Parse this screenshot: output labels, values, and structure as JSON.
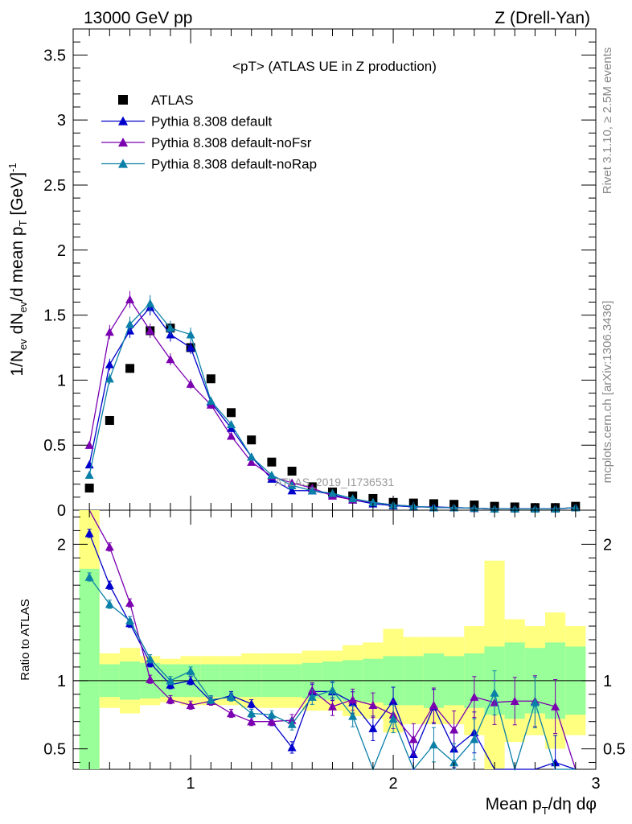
{
  "header": {
    "left": "13000 GeV pp",
    "right": "Z (Drell-Yan)"
  },
  "side_labels": {
    "rivet": "Rivet 3.1.10, ≥ 2.5M events",
    "mcplots": "mcplots.cern.ch [arXiv:1306.3436]"
  },
  "watermark": "ATLAS_2019_I1736531",
  "colors": {
    "atlas": "#000000",
    "default": "#0000cc",
    "noFsr": "#7a00b0",
    "noRap": "#0a7fa8",
    "band_yellow": "#ffff80",
    "band_green": "#99ff99"
  },
  "chart_data": [
    {
      "type": "line",
      "title": "<pT> (ATLAS UE in Z production)",
      "xlabel": "",
      "ylabel": "1/N_ev dN_ev/d mean p_T [GeV]^-1",
      "ylim": [
        0,
        3.7
      ],
      "xlim": [
        0.42,
        3.0
      ],
      "yticks": [
        "0",
        "0.5",
        "1",
        "1.5",
        "2",
        "2.5",
        "3",
        "3.5"
      ],
      "legend_position": "top-left",
      "x": [
        0.5,
        0.6,
        0.7,
        0.8,
        0.9,
        1.0,
        1.1,
        1.2,
        1.3,
        1.4,
        1.5,
        1.6,
        1.7,
        1.8,
        1.9,
        2.0,
        2.1,
        2.2,
        2.3,
        2.4,
        2.5,
        2.6,
        2.7,
        2.8,
        2.9
      ],
      "series": [
        {
          "name": "ATLAS",
          "marker": "square",
          "values": [
            0.17,
            0.69,
            1.09,
            1.38,
            1.4,
            1.25,
            1.01,
            0.75,
            0.54,
            0.37,
            0.3,
            0.18,
            0.14,
            0.11,
            0.09,
            0.06,
            0.055,
            0.05,
            0.045,
            0.04,
            0.03,
            0.025,
            0.02,
            0.02,
            0.03
          ]
        },
        {
          "name": "Pythia 8.308 default",
          "marker": "triangle",
          "values": [
            0.35,
            1.12,
            1.38,
            1.56,
            1.35,
            1.25,
            0.83,
            0.63,
            0.41,
            0.24,
            0.15,
            0.15,
            0.12,
            0.08,
            0.05,
            0.035,
            0.025,
            0.025,
            0.02,
            0.015,
            0.01,
            0.01,
            0.01,
            0.01,
            0.02
          ]
        },
        {
          "name": "Pythia 8.308 default-noFsr",
          "marker": "triangle",
          "values": [
            0.5,
            1.37,
            1.62,
            1.38,
            1.16,
            0.97,
            0.81,
            0.57,
            0.37,
            0.26,
            0.21,
            0.17,
            0.11,
            0.08,
            0.06,
            0.04,
            0.03,
            0.02,
            0.02,
            0.015,
            0.01,
            0.01,
            0.01,
            0.01,
            0.02
          ]
        },
        {
          "name": "Pythia 8.308 default-noRap",
          "marker": "triangle",
          "values": [
            0.27,
            1.01,
            1.43,
            1.59,
            1.4,
            1.35,
            0.84,
            0.66,
            0.41,
            0.27,
            0.19,
            0.15,
            0.13,
            0.09,
            0.06,
            0.04,
            0.03,
            0.02,
            0.02,
            0.015,
            0.01,
            0.01,
            0.01,
            0.01,
            0.02
          ]
        }
      ]
    },
    {
      "type": "line",
      "title": "",
      "xlabel": "Mean p_T/dη dφ",
      "ylabel": "Ratio to ATLAS",
      "ylim": [
        0.35,
        2.25
      ],
      "xlim": [
        0.42,
        3.0
      ],
      "yticks": [
        "0.5",
        "1",
        "2"
      ],
      "xticks": [
        "1",
        "2",
        "3"
      ],
      "reference_line": 1,
      "x": [
        0.5,
        0.6,
        0.7,
        0.8,
        0.9,
        1.0,
        1.1,
        1.2,
        1.3,
        1.4,
        1.5,
        1.6,
        1.7,
        1.8,
        1.9,
        2.0,
        2.1,
        2.2,
        2.3,
        2.4,
        2.5,
        2.6,
        2.7,
        2.8,
        2.9
      ],
      "bands": {
        "green_lo": [
          0.35,
          0.88,
          0.86,
          0.87,
          0.88,
          0.88,
          0.88,
          0.88,
          0.88,
          0.88,
          0.88,
          0.87,
          0.86,
          0.85,
          0.84,
          0.82,
          0.82,
          0.8,
          0.82,
          0.8,
          0.75,
          0.72,
          0.76,
          0.72,
          0.75
        ],
        "green_hi": [
          1.82,
          1.12,
          1.14,
          1.13,
          1.12,
          1.12,
          1.12,
          1.12,
          1.12,
          1.12,
          1.12,
          1.13,
          1.14,
          1.15,
          1.16,
          1.18,
          1.18,
          1.2,
          1.18,
          1.2,
          1.25,
          1.28,
          1.24,
          1.28,
          1.25
        ],
        "yellow_lo": [
          0.35,
          0.8,
          0.76,
          0.82,
          0.84,
          0.82,
          0.82,
          0.82,
          0.8,
          0.8,
          0.8,
          0.78,
          0.78,
          0.74,
          0.72,
          0.62,
          0.68,
          0.68,
          0.68,
          0.6,
          0.35,
          0.55,
          0.6,
          0.5,
          0.6
        ],
        "yellow_hi": [
          2.25,
          1.2,
          1.24,
          1.18,
          1.16,
          1.18,
          1.18,
          1.18,
          1.2,
          1.2,
          1.2,
          1.22,
          1.22,
          1.26,
          1.28,
          1.38,
          1.32,
          1.32,
          1.32,
          1.4,
          1.88,
          1.45,
          1.4,
          1.5,
          1.4
        ]
      },
      "series": [
        {
          "name": "Pythia 8.308 default",
          "values": [
            2.08,
            1.7,
            1.42,
            1.13,
            0.97,
            1.0,
            0.85,
            0.89,
            0.83,
            0.7,
            0.51,
            0.92,
            0.92,
            0.84,
            0.65,
            0.85,
            0.46,
            0.81,
            0.5,
            0.62,
            0.33,
            0.33,
            0.33,
            0.4,
            0.33
          ]
        },
        {
          "name": "Pythia 8.308 default-noFsr",
          "values": [
            2.5,
            1.98,
            1.57,
            1.01,
            0.86,
            0.82,
            0.85,
            0.76,
            0.7,
            0.7,
            0.71,
            0.93,
            0.81,
            0.86,
            0.82,
            0.75,
            0.57,
            0.82,
            0.64,
            0.88,
            0.84,
            0.85,
            0.85,
            0.81,
            0.33
          ]
        },
        {
          "name": "Pythia 8.308 default-noRap",
          "values": [
            1.76,
            1.56,
            1.44,
            1.16,
            1.0,
            1.07,
            0.86,
            0.88,
            0.76,
            0.75,
            0.68,
            0.88,
            0.93,
            0.74,
            0.33,
            0.72,
            0.33,
            0.53,
            0.4,
            0.57,
            0.91,
            0.33,
            0.84,
            0.35,
            0.33
          ]
        }
      ]
    }
  ]
}
